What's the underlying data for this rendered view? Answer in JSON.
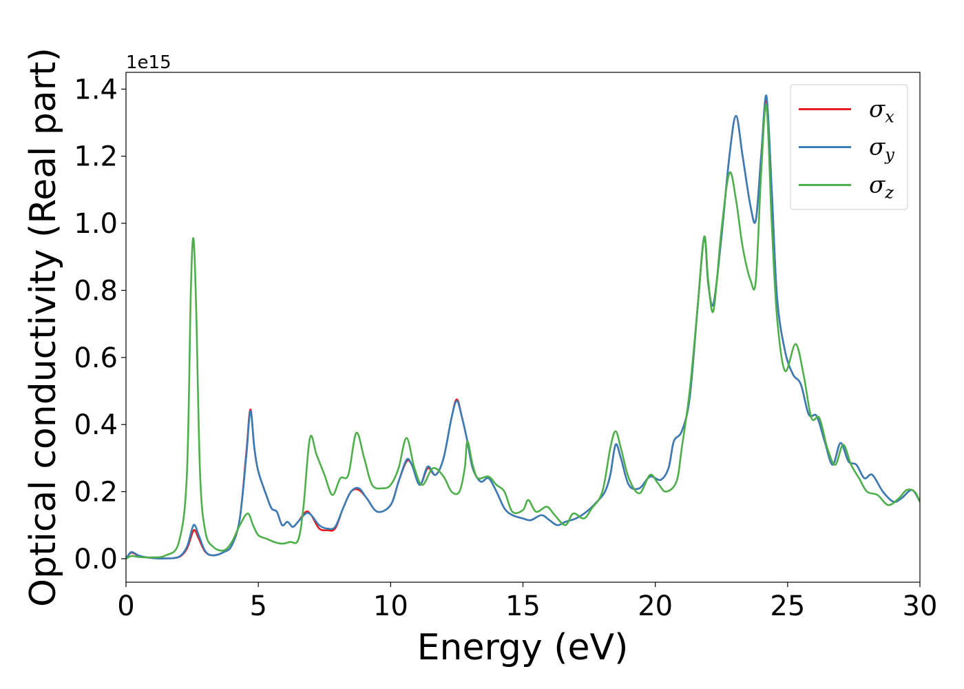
{
  "chart_data": {
    "type": "line",
    "title": "",
    "xlabel": "Energy (eV)",
    "ylabel": "Optical conductivity (Real part)",
    "y_offset_label": "1e15",
    "xlim": [
      0,
      30
    ],
    "ylim": [
      -0.07,
      1.45
    ],
    "xticks": [
      0,
      5,
      10,
      15,
      20,
      25,
      30
    ],
    "yticks": [
      0.0,
      0.2,
      0.4,
      0.6,
      0.8,
      1.0,
      1.2,
      1.4
    ],
    "grid": false,
    "legend_position": "top-right",
    "series": [
      {
        "name": "σx",
        "symbol": "σ",
        "subscript": "x",
        "color": "#e41a1c",
        "points": [
          [
            0,
            0.0
          ],
          [
            0.2,
            0.018
          ],
          [
            0.5,
            0.008
          ],
          [
            1,
            0.002
          ],
          [
            1.5,
            0.001
          ],
          [
            2,
            0.005
          ],
          [
            2.3,
            0.03
          ],
          [
            2.5,
            0.075
          ],
          [
            2.6,
            0.085
          ],
          [
            2.75,
            0.06
          ],
          [
            3,
            0.02
          ],
          [
            3.3,
            0.01
          ],
          [
            3.7,
            0.02
          ],
          [
            4.0,
            0.04
          ],
          [
            4.3,
            0.12
          ],
          [
            4.55,
            0.32
          ],
          [
            4.7,
            0.445
          ],
          [
            4.85,
            0.33
          ],
          [
            5.0,
            0.26
          ],
          [
            5.3,
            0.19
          ],
          [
            5.5,
            0.15
          ],
          [
            5.7,
            0.14
          ],
          [
            5.9,
            0.1
          ],
          [
            6.1,
            0.11
          ],
          [
            6.3,
            0.095
          ],
          [
            6.5,
            0.11
          ],
          [
            6.8,
            0.14
          ],
          [
            7.0,
            0.13
          ],
          [
            7.3,
            0.09
          ],
          [
            7.6,
            0.085
          ],
          [
            7.9,
            0.09
          ],
          [
            8.2,
            0.15
          ],
          [
            8.5,
            0.2
          ],
          [
            8.8,
            0.205
          ],
          [
            9.1,
            0.18
          ],
          [
            9.5,
            0.14
          ],
          [
            10.0,
            0.16
          ],
          [
            10.3,
            0.23
          ],
          [
            10.6,
            0.29
          ],
          [
            10.8,
            0.28
          ],
          [
            11.1,
            0.22
          ],
          [
            11.4,
            0.27
          ],
          [
            11.7,
            0.25
          ],
          [
            12.0,
            0.3
          ],
          [
            12.3,
            0.42
          ],
          [
            12.5,
            0.475
          ],
          [
            12.7,
            0.42
          ],
          [
            12.9,
            0.35
          ],
          [
            13.1,
            0.27
          ],
          [
            13.4,
            0.23
          ],
          [
            13.7,
            0.24
          ],
          [
            14.0,
            0.2
          ],
          [
            14.3,
            0.15
          ],
          [
            14.6,
            0.13
          ],
          [
            15.0,
            0.12
          ],
          [
            15.3,
            0.115
          ],
          [
            15.7,
            0.13
          ],
          [
            16.0,
            0.115
          ],
          [
            16.3,
            0.1
          ],
          [
            16.6,
            0.11
          ],
          [
            17.0,
            0.12
          ],
          [
            17.4,
            0.14
          ],
          [
            17.8,
            0.17
          ],
          [
            18.1,
            0.2
          ],
          [
            18.3,
            0.25
          ],
          [
            18.5,
            0.34
          ],
          [
            18.7,
            0.3
          ],
          [
            19.0,
            0.22
          ],
          [
            19.4,
            0.21
          ],
          [
            19.8,
            0.245
          ],
          [
            20.2,
            0.235
          ],
          [
            20.5,
            0.27
          ],
          [
            20.7,
            0.35
          ],
          [
            21.0,
            0.38
          ],
          [
            21.3,
            0.48
          ],
          [
            21.6,
            0.75
          ],
          [
            21.85,
            0.96
          ],
          [
            22.0,
            0.82
          ],
          [
            22.2,
            0.76
          ],
          [
            22.5,
            0.96
          ],
          [
            22.8,
            1.2
          ],
          [
            23.05,
            1.32
          ],
          [
            23.3,
            1.2
          ],
          [
            23.6,
            1.05
          ],
          [
            23.8,
            1.01
          ],
          [
            24.0,
            1.2
          ],
          [
            24.2,
            1.37
          ],
          [
            24.4,
            1.1
          ],
          [
            24.6,
            0.78
          ],
          [
            24.9,
            0.62
          ],
          [
            25.2,
            0.55
          ],
          [
            25.5,
            0.52
          ],
          [
            25.8,
            0.43
          ],
          [
            26.1,
            0.425
          ],
          [
            26.4,
            0.35
          ],
          [
            26.7,
            0.28
          ],
          [
            27.0,
            0.345
          ],
          [
            27.3,
            0.29
          ],
          [
            27.6,
            0.28
          ],
          [
            27.9,
            0.24
          ],
          [
            28.2,
            0.25
          ],
          [
            28.6,
            0.2
          ],
          [
            29.0,
            0.17
          ],
          [
            29.3,
            0.18
          ],
          [
            29.7,
            0.205
          ],
          [
            30.0,
            0.17
          ]
        ]
      },
      {
        "name": "σy",
        "symbol": "σ",
        "subscript": "y",
        "color": "#377eb8",
        "points": [
          [
            0,
            0.0
          ],
          [
            0.2,
            0.02
          ],
          [
            0.5,
            0.009
          ],
          [
            1,
            0.002
          ],
          [
            1.5,
            0.001
          ],
          [
            2,
            0.006
          ],
          [
            2.3,
            0.035
          ],
          [
            2.5,
            0.09
          ],
          [
            2.6,
            0.1
          ],
          [
            2.75,
            0.07
          ],
          [
            3,
            0.022
          ],
          [
            3.3,
            0.01
          ],
          [
            3.7,
            0.02
          ],
          [
            4.0,
            0.04
          ],
          [
            4.3,
            0.12
          ],
          [
            4.55,
            0.31
          ],
          [
            4.7,
            0.44
          ],
          [
            4.85,
            0.33
          ],
          [
            5.0,
            0.26
          ],
          [
            5.3,
            0.19
          ],
          [
            5.5,
            0.15
          ],
          [
            5.7,
            0.14
          ],
          [
            5.9,
            0.1
          ],
          [
            6.1,
            0.11
          ],
          [
            6.3,
            0.095
          ],
          [
            6.5,
            0.11
          ],
          [
            6.8,
            0.135
          ],
          [
            7.0,
            0.13
          ],
          [
            7.3,
            0.1
          ],
          [
            7.6,
            0.09
          ],
          [
            7.9,
            0.095
          ],
          [
            8.2,
            0.15
          ],
          [
            8.5,
            0.2
          ],
          [
            8.8,
            0.21
          ],
          [
            9.1,
            0.18
          ],
          [
            9.5,
            0.14
          ],
          [
            10.0,
            0.16
          ],
          [
            10.3,
            0.23
          ],
          [
            10.6,
            0.295
          ],
          [
            10.8,
            0.28
          ],
          [
            11.1,
            0.22
          ],
          [
            11.4,
            0.275
          ],
          [
            11.7,
            0.25
          ],
          [
            12.0,
            0.3
          ],
          [
            12.3,
            0.42
          ],
          [
            12.5,
            0.47
          ],
          [
            12.7,
            0.42
          ],
          [
            12.9,
            0.35
          ],
          [
            13.1,
            0.27
          ],
          [
            13.4,
            0.23
          ],
          [
            13.7,
            0.24
          ],
          [
            14.0,
            0.2
          ],
          [
            14.3,
            0.15
          ],
          [
            14.6,
            0.13
          ],
          [
            15.0,
            0.12
          ],
          [
            15.3,
            0.115
          ],
          [
            15.7,
            0.13
          ],
          [
            16.0,
            0.115
          ],
          [
            16.3,
            0.1
          ],
          [
            16.6,
            0.11
          ],
          [
            17.0,
            0.12
          ],
          [
            17.4,
            0.14
          ],
          [
            17.8,
            0.17
          ],
          [
            18.1,
            0.2
          ],
          [
            18.3,
            0.25
          ],
          [
            18.5,
            0.34
          ],
          [
            18.7,
            0.3
          ],
          [
            19.0,
            0.22
          ],
          [
            19.4,
            0.21
          ],
          [
            19.8,
            0.245
          ],
          [
            20.2,
            0.235
          ],
          [
            20.5,
            0.27
          ],
          [
            20.7,
            0.35
          ],
          [
            21.0,
            0.38
          ],
          [
            21.3,
            0.48
          ],
          [
            21.6,
            0.75
          ],
          [
            21.85,
            0.96
          ],
          [
            22.0,
            0.82
          ],
          [
            22.2,
            0.76
          ],
          [
            22.5,
            0.96
          ],
          [
            22.8,
            1.2
          ],
          [
            23.05,
            1.32
          ],
          [
            23.3,
            1.2
          ],
          [
            23.6,
            1.05
          ],
          [
            23.8,
            1.01
          ],
          [
            24.0,
            1.2
          ],
          [
            24.2,
            1.38
          ],
          [
            24.4,
            1.1
          ],
          [
            24.6,
            0.78
          ],
          [
            24.9,
            0.62
          ],
          [
            25.2,
            0.55
          ],
          [
            25.5,
            0.52
          ],
          [
            25.8,
            0.43
          ],
          [
            26.1,
            0.425
          ],
          [
            26.4,
            0.35
          ],
          [
            26.7,
            0.28
          ],
          [
            27.0,
            0.345
          ],
          [
            27.3,
            0.29
          ],
          [
            27.6,
            0.28
          ],
          [
            27.9,
            0.24
          ],
          [
            28.2,
            0.25
          ],
          [
            28.6,
            0.2
          ],
          [
            29.0,
            0.17
          ],
          [
            29.3,
            0.18
          ],
          [
            29.7,
            0.205
          ],
          [
            30.0,
            0.17
          ]
        ]
      },
      {
        "name": "σz",
        "symbol": "σ",
        "subscript": "z",
        "color": "#4daf4a",
        "points": [
          [
            0,
            0.0
          ],
          [
            0.2,
            0.008
          ],
          [
            0.5,
            0.005
          ],
          [
            1,
            0.004
          ],
          [
            1.5,
            0.01
          ],
          [
            2,
            0.05
          ],
          [
            2.3,
            0.25
          ],
          [
            2.45,
            0.8
          ],
          [
            2.55,
            0.955
          ],
          [
            2.65,
            0.75
          ],
          [
            2.8,
            0.25
          ],
          [
            3.0,
            0.08
          ],
          [
            3.3,
            0.035
          ],
          [
            3.7,
            0.025
          ],
          [
            4.0,
            0.05
          ],
          [
            4.3,
            0.1
          ],
          [
            4.6,
            0.135
          ],
          [
            4.8,
            0.1
          ],
          [
            5.0,
            0.07
          ],
          [
            5.3,
            0.06
          ],
          [
            5.6,
            0.05
          ],
          [
            5.9,
            0.045
          ],
          [
            6.2,
            0.05
          ],
          [
            6.5,
            0.055
          ],
          [
            6.7,
            0.15
          ],
          [
            6.95,
            0.36
          ],
          [
            7.2,
            0.31
          ],
          [
            7.5,
            0.25
          ],
          [
            7.8,
            0.19
          ],
          [
            8.1,
            0.24
          ],
          [
            8.4,
            0.25
          ],
          [
            8.7,
            0.375
          ],
          [
            9.0,
            0.3
          ],
          [
            9.3,
            0.22
          ],
          [
            9.7,
            0.21
          ],
          [
            10.0,
            0.22
          ],
          [
            10.3,
            0.27
          ],
          [
            10.6,
            0.36
          ],
          [
            10.9,
            0.27
          ],
          [
            11.2,
            0.22
          ],
          [
            11.6,
            0.27
          ],
          [
            12.0,
            0.245
          ],
          [
            12.3,
            0.2
          ],
          [
            12.6,
            0.2
          ],
          [
            12.8,
            0.27
          ],
          [
            12.9,
            0.35
          ],
          [
            13.1,
            0.28
          ],
          [
            13.3,
            0.24
          ],
          [
            13.7,
            0.245
          ],
          [
            14.0,
            0.22
          ],
          [
            14.3,
            0.2
          ],
          [
            14.6,
            0.14
          ],
          [
            15.0,
            0.145
          ],
          [
            15.2,
            0.175
          ],
          [
            15.5,
            0.14
          ],
          [
            15.9,
            0.155
          ],
          [
            16.2,
            0.13
          ],
          [
            16.6,
            0.1
          ],
          [
            16.9,
            0.135
          ],
          [
            17.3,
            0.12
          ],
          [
            17.6,
            0.15
          ],
          [
            18.0,
            0.2
          ],
          [
            18.3,
            0.33
          ],
          [
            18.5,
            0.38
          ],
          [
            18.7,
            0.33
          ],
          [
            19.0,
            0.24
          ],
          [
            19.4,
            0.195
          ],
          [
            19.8,
            0.25
          ],
          [
            20.1,
            0.225
          ],
          [
            20.4,
            0.2
          ],
          [
            20.8,
            0.23
          ],
          [
            21.0,
            0.33
          ],
          [
            21.3,
            0.5
          ],
          [
            21.6,
            0.75
          ],
          [
            21.85,
            0.96
          ],
          [
            22.0,
            0.83
          ],
          [
            22.2,
            0.74
          ],
          [
            22.5,
            0.98
          ],
          [
            22.8,
            1.15
          ],
          [
            23.05,
            1.07
          ],
          [
            23.3,
            0.93
          ],
          [
            23.6,
            0.83
          ],
          [
            23.8,
            0.83
          ],
          [
            24.0,
            1.15
          ],
          [
            24.2,
            1.35
          ],
          [
            24.4,
            1.0
          ],
          [
            24.6,
            0.72
          ],
          [
            24.9,
            0.56
          ],
          [
            25.3,
            0.64
          ],
          [
            25.6,
            0.55
          ],
          [
            25.9,
            0.42
          ],
          [
            26.2,
            0.42
          ],
          [
            26.5,
            0.33
          ],
          [
            26.8,
            0.28
          ],
          [
            27.1,
            0.34
          ],
          [
            27.4,
            0.28
          ],
          [
            27.7,
            0.24
          ],
          [
            28.0,
            0.2
          ],
          [
            28.4,
            0.19
          ],
          [
            28.8,
            0.16
          ],
          [
            29.2,
            0.18
          ],
          [
            29.5,
            0.205
          ],
          [
            29.8,
            0.2
          ],
          [
            30.0,
            0.17
          ]
        ]
      }
    ]
  }
}
